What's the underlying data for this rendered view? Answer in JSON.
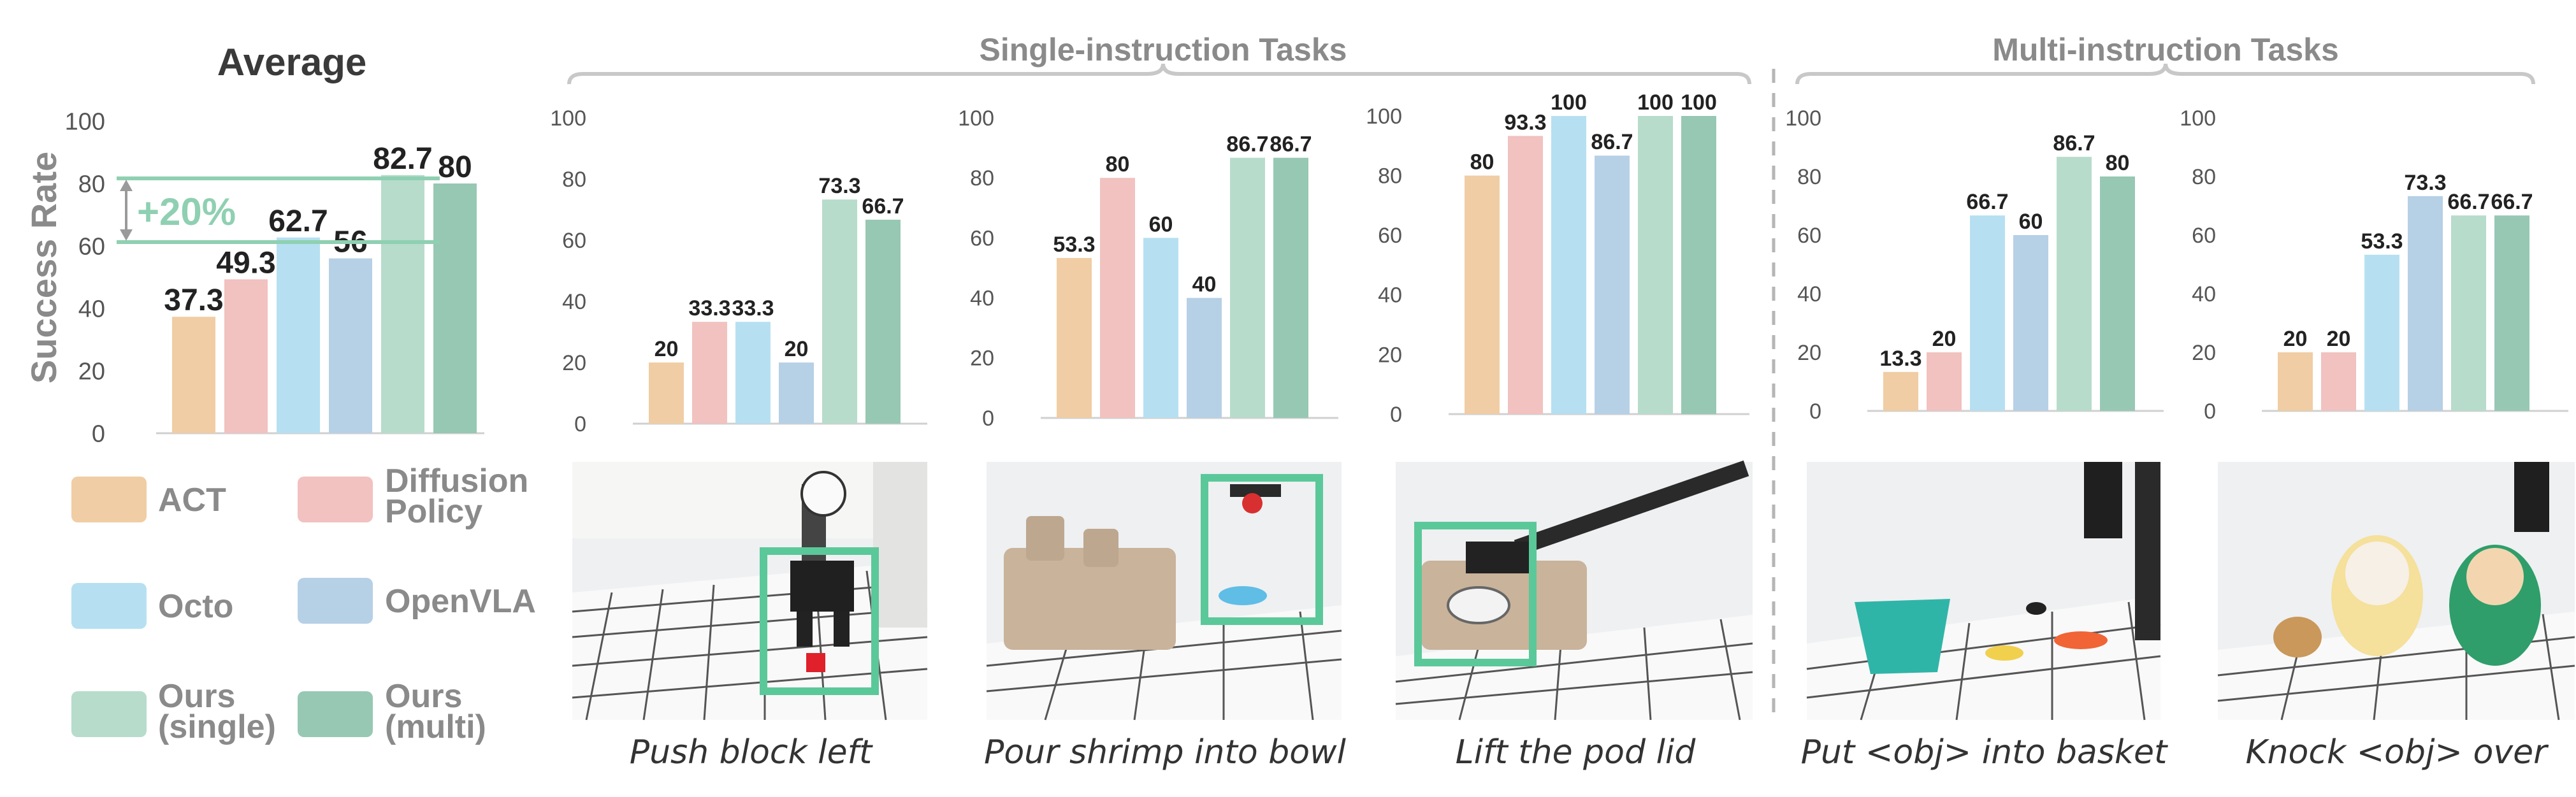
{
  "colors": {
    "ACT": "#f0cda4",
    "Diffusion Policy": "#f1c2c0",
    "Octo": "#b6e0f1",
    "OpenVLA": "#b6d0e6",
    "Ours (single)": "#b7dccb",
    "Ours (multi)": "#97c8b4",
    "accent": "#8fd0b2",
    "section_title": "#8a8a8a"
  },
  "left": {
    "title": "Average",
    "ylabel": "Success Rate",
    "improvement": "+20%"
  },
  "sections": {
    "single": "Single-instruction Tasks",
    "multi": "Multi-instruction Tasks"
  },
  "legend": [
    {
      "line1": "ACT",
      "line2": "",
      "color": "#f0cda4"
    },
    {
      "line1": "Diffusion",
      "line2": "Policy",
      "color": "#f1c2c0"
    },
    {
      "line1": "Octo",
      "line2": "",
      "color": "#b6e0f1"
    },
    {
      "line1": "OpenVLA",
      "line2": "",
      "color": "#b6d0e6"
    },
    {
      "line1": "Ours",
      "line2": "(single)",
      "color": "#b7dccb"
    },
    {
      "line1": "Ours",
      "line2": "(multi)",
      "color": "#97c8b4"
    }
  ],
  "captions": [
    "Push block left",
    "Pour shrimp into bowl",
    "Lift the pod lid",
    "Put <obj> into basket",
    "Knock <obj> over"
  ],
  "chart_data": [
    {
      "type": "bar",
      "title": "Average",
      "ylabel": "Success Rate",
      "categories": [
        "ACT",
        "Diffusion Policy",
        "Octo",
        "OpenVLA",
        "Ours (single)",
        "Ours (multi)"
      ],
      "values": [
        37.3,
        49.3,
        62.7,
        56,
        82.7,
        80
      ],
      "value_labels": [
        "37.3",
        "49.3",
        "62.7",
        "56",
        "82.7",
        "80"
      ],
      "yticks": [
        "0",
        "20",
        "40",
        "60",
        "80",
        "100"
      ],
      "ylim": [
        0,
        100
      ],
      "annotation": "+20%"
    },
    {
      "type": "bar",
      "task": "Push block left",
      "categories": [
        "ACT",
        "Diffusion Policy",
        "Octo",
        "OpenVLA",
        "Ours (single)",
        "Ours (multi)"
      ],
      "values": [
        20,
        33.3,
        33.3,
        20,
        73.3,
        66.7
      ],
      "value_labels": [
        "20",
        "33.3",
        "33.3",
        "20",
        "73.3",
        "66.7"
      ],
      "yticks": [
        "0",
        "20",
        "40",
        "60",
        "80",
        "100"
      ],
      "ylim": [
        0,
        100
      ]
    },
    {
      "type": "bar",
      "task": "Pour shrimp into bowl",
      "categories": [
        "ACT",
        "Diffusion Policy",
        "Octo",
        "OpenVLA",
        "Ours (single)",
        "Ours (multi)"
      ],
      "values": [
        53.3,
        80,
        60,
        40,
        86.7,
        86.7
      ],
      "value_labels": [
        "53.3",
        "80",
        "60",
        "40",
        "86.7",
        "86.7"
      ],
      "yticks": [
        "0",
        "20",
        "40",
        "60",
        "80",
        "100"
      ],
      "ylim": [
        0,
        100
      ]
    },
    {
      "type": "bar",
      "task": "Lift the pod lid",
      "categories": [
        "ACT",
        "Diffusion Policy",
        "Octo",
        "OpenVLA",
        "Ours (single)",
        "Ours (multi)"
      ],
      "values": [
        80,
        93.3,
        100,
        86.7,
        100,
        100
      ],
      "value_labels": [
        "80",
        "93.3",
        "100",
        "86.7",
        "100",
        "100"
      ],
      "yticks": [
        "0",
        "20",
        "40",
        "60",
        "80",
        "100"
      ],
      "ylim": [
        0,
        100
      ]
    },
    {
      "type": "bar",
      "task": "Put <obj> into basket",
      "categories": [
        "ACT",
        "Diffusion Policy",
        "Octo",
        "OpenVLA",
        "Ours (single)",
        "Ours (multi)"
      ],
      "values": [
        13.3,
        20,
        66.7,
        60,
        86.7,
        80
      ],
      "value_labels": [
        "13.3",
        "20",
        "66.7",
        "60",
        "86.7",
        "80"
      ],
      "yticks": [
        "0",
        "20",
        "40",
        "60",
        "80",
        "100"
      ],
      "ylim": [
        0,
        100
      ]
    },
    {
      "type": "bar",
      "task": "Knock <obj> over",
      "categories": [
        "ACT",
        "Diffusion Policy",
        "Octo",
        "OpenVLA",
        "Ours (single)",
        "Ours (multi)"
      ],
      "values": [
        20,
        20,
        53.3,
        73.3,
        66.7,
        66.7
      ],
      "value_labels": [
        "20",
        "20",
        "53.3",
        "73.3",
        "66.7",
        "66.7"
      ],
      "yticks": [
        "0",
        "20",
        "40",
        "60",
        "80",
        "100"
      ],
      "ylim": [
        0,
        100
      ]
    }
  ]
}
